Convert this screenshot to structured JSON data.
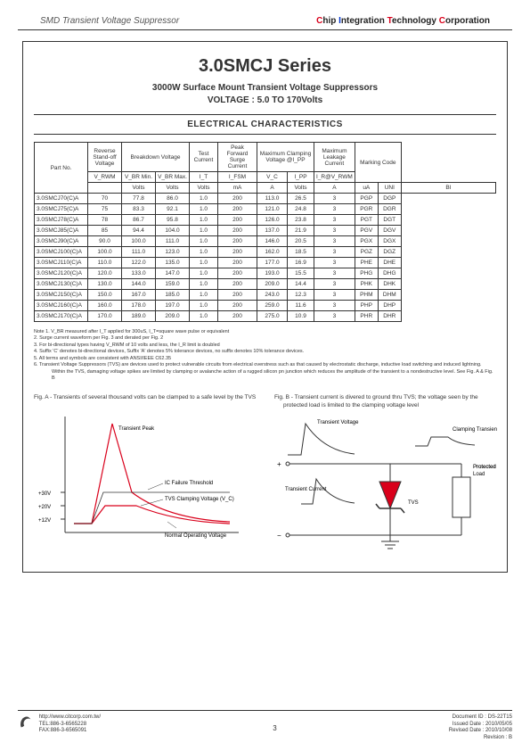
{
  "header": {
    "left": "SMD Transient Voltage Suppressor",
    "right_parts": [
      "C",
      "hip ",
      "I",
      "ntegration ",
      "T",
      "echnology ",
      "C",
      "orporation"
    ]
  },
  "title": "3.0SMCJ Series",
  "subtitle1": "3000W Surface Mount Transient Voltage Suppressors",
  "subtitle2": "VOLTAGE : 5.0 TO 170Volts",
  "section_title": "ELECTRICAL CHARACTERISTICS",
  "table": {
    "headers_top": [
      "Part No.",
      "Reverse Stand-off Voltage",
      "Breakdown Voltage",
      "Test Current",
      "Peak Forward Surge Current",
      "Maximum Clamping Voltage @I_PP",
      "Maximum Leakage Current",
      "Marking Code"
    ],
    "headers_sym": [
      "V_RWM",
      "V_BR Min.",
      "V_BR Max.",
      "I_T",
      "I_FSM",
      "V_C",
      "I_PP",
      "I_R@V_RWM",
      "",
      ""
    ],
    "headers_unit": [
      "Volts",
      "Volts",
      "Volts",
      "mA",
      "A",
      "Volts",
      "A",
      "uA",
      "UNI",
      "BI"
    ],
    "rows": [
      [
        "3.0SMCJ70(C)A",
        "70",
        "77.8",
        "86.0",
        "1.0",
        "200",
        "113.0",
        "26.5",
        "3",
        "PGP",
        "DGP"
      ],
      [
        "3.0SMCJ75(C)A",
        "75",
        "83.3",
        "92.1",
        "1.0",
        "200",
        "121.0",
        "24.8",
        "3",
        "PGR",
        "DGR"
      ],
      [
        "3.0SMCJ78(C)A",
        "78",
        "86.7",
        "95.8",
        "1.0",
        "200",
        "126.0",
        "23.8",
        "3",
        "PGT",
        "DGT"
      ],
      [
        "3.0SMCJ85(C)A",
        "85",
        "94.4",
        "104.0",
        "1.0",
        "200",
        "137.0",
        "21.9",
        "3",
        "PGV",
        "DGV"
      ],
      [
        "3.0SMCJ90(C)A",
        "90.0",
        "100.0",
        "111.0",
        "1.0",
        "200",
        "146.0",
        "20.5",
        "3",
        "PGX",
        "DGX"
      ],
      [
        "3.0SMCJ100(C)A",
        "100.0",
        "111.0",
        "123.0",
        "1.0",
        "200",
        "162.0",
        "18.5",
        "3",
        "PGZ",
        "DGZ"
      ],
      [
        "3.0SMCJ110(C)A",
        "110.0",
        "122.0",
        "135.0",
        "1.0",
        "200",
        "177.0",
        "16.9",
        "3",
        "PHE",
        "DHE"
      ],
      [
        "3.0SMCJ120(C)A",
        "120.0",
        "133.0",
        "147.0",
        "1.0",
        "200",
        "193.0",
        "15.5",
        "3",
        "PHG",
        "DHG"
      ],
      [
        "3.0SMCJ130(C)A",
        "130.0",
        "144.0",
        "159.0",
        "1.0",
        "200",
        "209.0",
        "14.4",
        "3",
        "PHK",
        "DHK"
      ],
      [
        "3.0SMCJ150(C)A",
        "150.0",
        "167.0",
        "185.0",
        "1.0",
        "200",
        "243.0",
        "12.3",
        "3",
        "PHM",
        "DHM"
      ],
      [
        "3.0SMCJ160(C)A",
        "160.0",
        "178.0",
        "197.0",
        "1.0",
        "200",
        "259.0",
        "11.6",
        "3",
        "PHP",
        "DHP"
      ],
      [
        "3.0SMCJ170(C)A",
        "170.0",
        "189.0",
        "209.0",
        "1.0",
        "200",
        "275.0",
        "10.9",
        "3",
        "PHR",
        "DHR"
      ]
    ],
    "col_widths": [
      "60",
      "38",
      "38",
      "38",
      "32",
      "44",
      "34",
      "30",
      "40",
      "26",
      "26"
    ]
  },
  "notes": [
    "Note 1. V_BR measured after I_T applied for 300uS, I_T=square wave pulse or equivalent",
    "2. Surge current waveform per Fig. 3 and derated per Fig. 2",
    "3. For bi-directional types having V_RWM of 10 volts and less, the I_R limit is doubled",
    "4. Suffix 'C' denotes bi-directional devices, Suffix 'A' denotes 5% tolerance devices, no suffix denotes 10% tolerance devices.",
    "5. All terms and symbols are consistent with ANSI/IEEE C62.35",
    "6. Transient Voltage Suppressors (TVS) are devices used to protect vulnerable circuits from electrical overstress such as that caused by electrostatic discharge, inductive load switching and induced lightning. Within the TVS, damaging voltage spikes are limited by clamping or avalanche action of a rugged silicon pn junction which reduces the amplitude of the transient to a nondestructive level. See Fig. A & Fig. B"
  ],
  "figA": {
    "caption": "Fig. A - Transients of several thousand volts can be clamped to a safe level by the TVS",
    "labels": {
      "peak": "Transient Peak",
      "threshold": "IC Failure Threshold",
      "clamp": "TVS Clamping Voltage (V_C)",
      "normal": "Normal Operating Voltage",
      "y30": "+30V",
      "y20": "+20V",
      "y12": "+12V"
    },
    "colors": {
      "axis": "#333333",
      "line": "#d9001b"
    }
  },
  "figB": {
    "caption": "Fig. B - Transient current is divered to ground thru TVS; the voltage seen by the protected load is limited to the clamping voltage level",
    "labels": {
      "tv": "Transient Voltage",
      "ct": "Clamping Transient",
      "tc": "Transient Current",
      "tvs": "TVS",
      "load": "Protected Load",
      "plus": "+",
      "minus": "−"
    },
    "colors": {
      "line": "#333333",
      "tvs_fill": "#d9001b",
      "wave": "#333333"
    }
  },
  "footer": {
    "url": "http://www.citcorp.com.tw/",
    "tel": "TEL:886-3-6565228",
    "fax": "FAX:886-3-6565091",
    "page": "3",
    "docid": "Document ID : DS-22T15",
    "issued": "Issued Date : 2010/05/05",
    "revised": "Revised Date : 2010/10/08",
    "rev": "Revision : B"
  }
}
